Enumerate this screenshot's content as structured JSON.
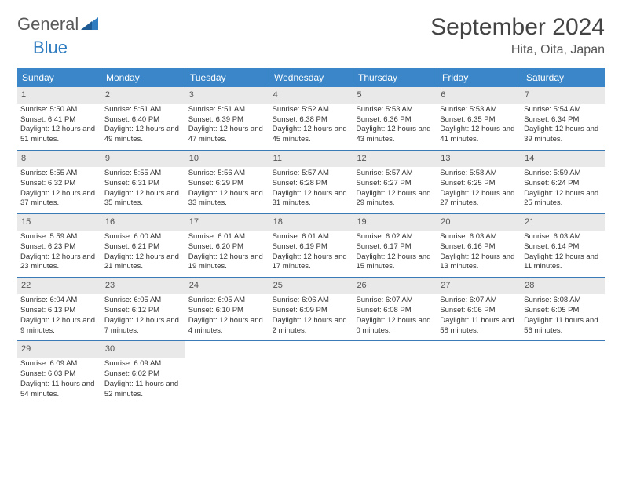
{
  "header": {
    "logo_part1": "General",
    "logo_part2": "Blue",
    "month_title": "September 2024",
    "location": "Hita, Oita, Japan"
  },
  "colors": {
    "header_bg": "#3a86c8",
    "header_text": "#ffffff",
    "row_divider": "#3a7bb5",
    "daynum_bg": "#e9e9e9",
    "daynum_text": "#555555",
    "body_text": "#333333",
    "logo_gray": "#5a5a5a",
    "logo_blue": "#2f7cc0",
    "page_bg": "#ffffff"
  },
  "typography": {
    "month_title_fontsize": 30,
    "location_fontsize": 16,
    "logo_fontsize": 22,
    "weekday_fontsize": 12,
    "daynum_fontsize": 11,
    "cell_fontsize": 9.5
  },
  "weekdays": [
    "Sunday",
    "Monday",
    "Tuesday",
    "Wednesday",
    "Thursday",
    "Friday",
    "Saturday"
  ],
  "weeks": [
    [
      {
        "day": "1",
        "sunrise": "Sunrise: 5:50 AM",
        "sunset": "Sunset: 6:41 PM",
        "daylight": "Daylight: 12 hours and 51 minutes."
      },
      {
        "day": "2",
        "sunrise": "Sunrise: 5:51 AM",
        "sunset": "Sunset: 6:40 PM",
        "daylight": "Daylight: 12 hours and 49 minutes."
      },
      {
        "day": "3",
        "sunrise": "Sunrise: 5:51 AM",
        "sunset": "Sunset: 6:39 PM",
        "daylight": "Daylight: 12 hours and 47 minutes."
      },
      {
        "day": "4",
        "sunrise": "Sunrise: 5:52 AM",
        "sunset": "Sunset: 6:38 PM",
        "daylight": "Daylight: 12 hours and 45 minutes."
      },
      {
        "day": "5",
        "sunrise": "Sunrise: 5:53 AM",
        "sunset": "Sunset: 6:36 PM",
        "daylight": "Daylight: 12 hours and 43 minutes."
      },
      {
        "day": "6",
        "sunrise": "Sunrise: 5:53 AM",
        "sunset": "Sunset: 6:35 PM",
        "daylight": "Daylight: 12 hours and 41 minutes."
      },
      {
        "day": "7",
        "sunrise": "Sunrise: 5:54 AM",
        "sunset": "Sunset: 6:34 PM",
        "daylight": "Daylight: 12 hours and 39 minutes."
      }
    ],
    [
      {
        "day": "8",
        "sunrise": "Sunrise: 5:55 AM",
        "sunset": "Sunset: 6:32 PM",
        "daylight": "Daylight: 12 hours and 37 minutes."
      },
      {
        "day": "9",
        "sunrise": "Sunrise: 5:55 AM",
        "sunset": "Sunset: 6:31 PM",
        "daylight": "Daylight: 12 hours and 35 minutes."
      },
      {
        "day": "10",
        "sunrise": "Sunrise: 5:56 AM",
        "sunset": "Sunset: 6:29 PM",
        "daylight": "Daylight: 12 hours and 33 minutes."
      },
      {
        "day": "11",
        "sunrise": "Sunrise: 5:57 AM",
        "sunset": "Sunset: 6:28 PM",
        "daylight": "Daylight: 12 hours and 31 minutes."
      },
      {
        "day": "12",
        "sunrise": "Sunrise: 5:57 AM",
        "sunset": "Sunset: 6:27 PM",
        "daylight": "Daylight: 12 hours and 29 minutes."
      },
      {
        "day": "13",
        "sunrise": "Sunrise: 5:58 AM",
        "sunset": "Sunset: 6:25 PM",
        "daylight": "Daylight: 12 hours and 27 minutes."
      },
      {
        "day": "14",
        "sunrise": "Sunrise: 5:59 AM",
        "sunset": "Sunset: 6:24 PM",
        "daylight": "Daylight: 12 hours and 25 minutes."
      }
    ],
    [
      {
        "day": "15",
        "sunrise": "Sunrise: 5:59 AM",
        "sunset": "Sunset: 6:23 PM",
        "daylight": "Daylight: 12 hours and 23 minutes."
      },
      {
        "day": "16",
        "sunrise": "Sunrise: 6:00 AM",
        "sunset": "Sunset: 6:21 PM",
        "daylight": "Daylight: 12 hours and 21 minutes."
      },
      {
        "day": "17",
        "sunrise": "Sunrise: 6:01 AM",
        "sunset": "Sunset: 6:20 PM",
        "daylight": "Daylight: 12 hours and 19 minutes."
      },
      {
        "day": "18",
        "sunrise": "Sunrise: 6:01 AM",
        "sunset": "Sunset: 6:19 PM",
        "daylight": "Daylight: 12 hours and 17 minutes."
      },
      {
        "day": "19",
        "sunrise": "Sunrise: 6:02 AM",
        "sunset": "Sunset: 6:17 PM",
        "daylight": "Daylight: 12 hours and 15 minutes."
      },
      {
        "day": "20",
        "sunrise": "Sunrise: 6:03 AM",
        "sunset": "Sunset: 6:16 PM",
        "daylight": "Daylight: 12 hours and 13 minutes."
      },
      {
        "day": "21",
        "sunrise": "Sunrise: 6:03 AM",
        "sunset": "Sunset: 6:14 PM",
        "daylight": "Daylight: 12 hours and 11 minutes."
      }
    ],
    [
      {
        "day": "22",
        "sunrise": "Sunrise: 6:04 AM",
        "sunset": "Sunset: 6:13 PM",
        "daylight": "Daylight: 12 hours and 9 minutes."
      },
      {
        "day": "23",
        "sunrise": "Sunrise: 6:05 AM",
        "sunset": "Sunset: 6:12 PM",
        "daylight": "Daylight: 12 hours and 7 minutes."
      },
      {
        "day": "24",
        "sunrise": "Sunrise: 6:05 AM",
        "sunset": "Sunset: 6:10 PM",
        "daylight": "Daylight: 12 hours and 4 minutes."
      },
      {
        "day": "25",
        "sunrise": "Sunrise: 6:06 AM",
        "sunset": "Sunset: 6:09 PM",
        "daylight": "Daylight: 12 hours and 2 minutes."
      },
      {
        "day": "26",
        "sunrise": "Sunrise: 6:07 AM",
        "sunset": "Sunset: 6:08 PM",
        "daylight": "Daylight: 12 hours and 0 minutes."
      },
      {
        "day": "27",
        "sunrise": "Sunrise: 6:07 AM",
        "sunset": "Sunset: 6:06 PM",
        "daylight": "Daylight: 11 hours and 58 minutes."
      },
      {
        "day": "28",
        "sunrise": "Sunrise: 6:08 AM",
        "sunset": "Sunset: 6:05 PM",
        "daylight": "Daylight: 11 hours and 56 minutes."
      }
    ],
    [
      {
        "day": "29",
        "sunrise": "Sunrise: 6:09 AM",
        "sunset": "Sunset: 6:03 PM",
        "daylight": "Daylight: 11 hours and 54 minutes."
      },
      {
        "day": "30",
        "sunrise": "Sunrise: 6:09 AM",
        "sunset": "Sunset: 6:02 PM",
        "daylight": "Daylight: 11 hours and 52 minutes."
      },
      null,
      null,
      null,
      null,
      null
    ]
  ]
}
